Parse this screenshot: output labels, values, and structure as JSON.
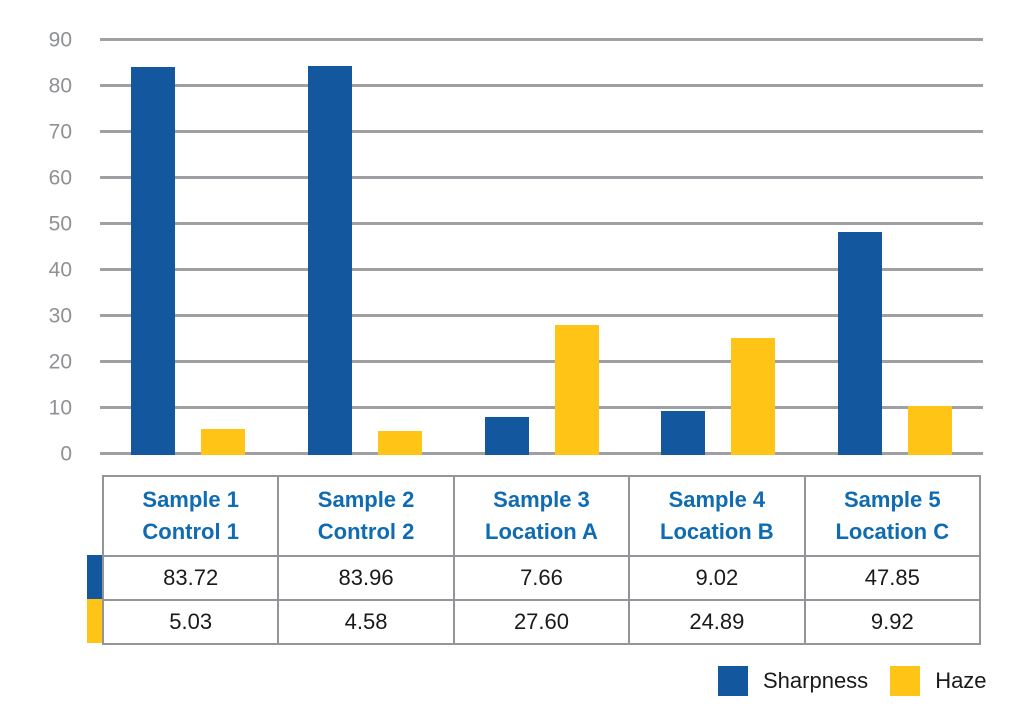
{
  "chart_data": {
    "type": "bar",
    "categories": [
      [
        "Sample 1",
        "Control 1"
      ],
      [
        "Sample 2",
        "Control 2"
      ],
      [
        "Sample 3",
        "Location A"
      ],
      [
        "Sample 4",
        "Location B"
      ],
      [
        "Sample 5",
        "Location C"
      ]
    ],
    "series": [
      {
        "name": "Sharpness",
        "color": "#13589F",
        "values": [
          83.72,
          83.96,
          7.66,
          9.02,
          47.85
        ]
      },
      {
        "name": "Haze",
        "color": "#FFC415",
        "values": [
          5.03,
          4.58,
          27.6,
          24.89,
          9.92
        ]
      }
    ],
    "title": "",
    "xlabel": "",
    "ylabel": "",
    "ylim": [
      0,
      90
    ],
    "ytick_interval": 10,
    "yticks": [
      "90",
      "80",
      "70",
      "60",
      "50",
      "40",
      "30",
      "20",
      "10",
      "0"
    ],
    "grid": "horizontal-only",
    "legend_position": "bottom-right"
  },
  "table": {
    "header_rows": [
      [
        "Sample 1",
        "Sample 2",
        "Sample 3",
        "Sample 4",
        "Sample 5"
      ],
      [
        "Control 1",
        "Control 2",
        "Location A",
        "Location B",
        "Location C"
      ]
    ],
    "data_rows": [
      {
        "series": "Sharpness",
        "swatch_color": "#13589F",
        "values": [
          "83.72",
          "83.96",
          "7.66",
          "9.02",
          "47.85"
        ]
      },
      {
        "series": "Haze",
        "swatch_color": "#FFC415",
        "values": [
          "5.03",
          "4.58",
          "27.60",
          "24.89",
          "9.92"
        ]
      }
    ]
  },
  "legend": {
    "items": [
      {
        "label": "Sharpness",
        "color": "#13589F"
      },
      {
        "label": "Haze",
        "color": "#FFC415"
      }
    ]
  },
  "colors": {
    "gridline": "#9EA0A3",
    "axis_label": "#8E9093",
    "table_border": "#939598",
    "table_header_text": "#0F6BB2",
    "value_text": "#1A1A1A"
  }
}
